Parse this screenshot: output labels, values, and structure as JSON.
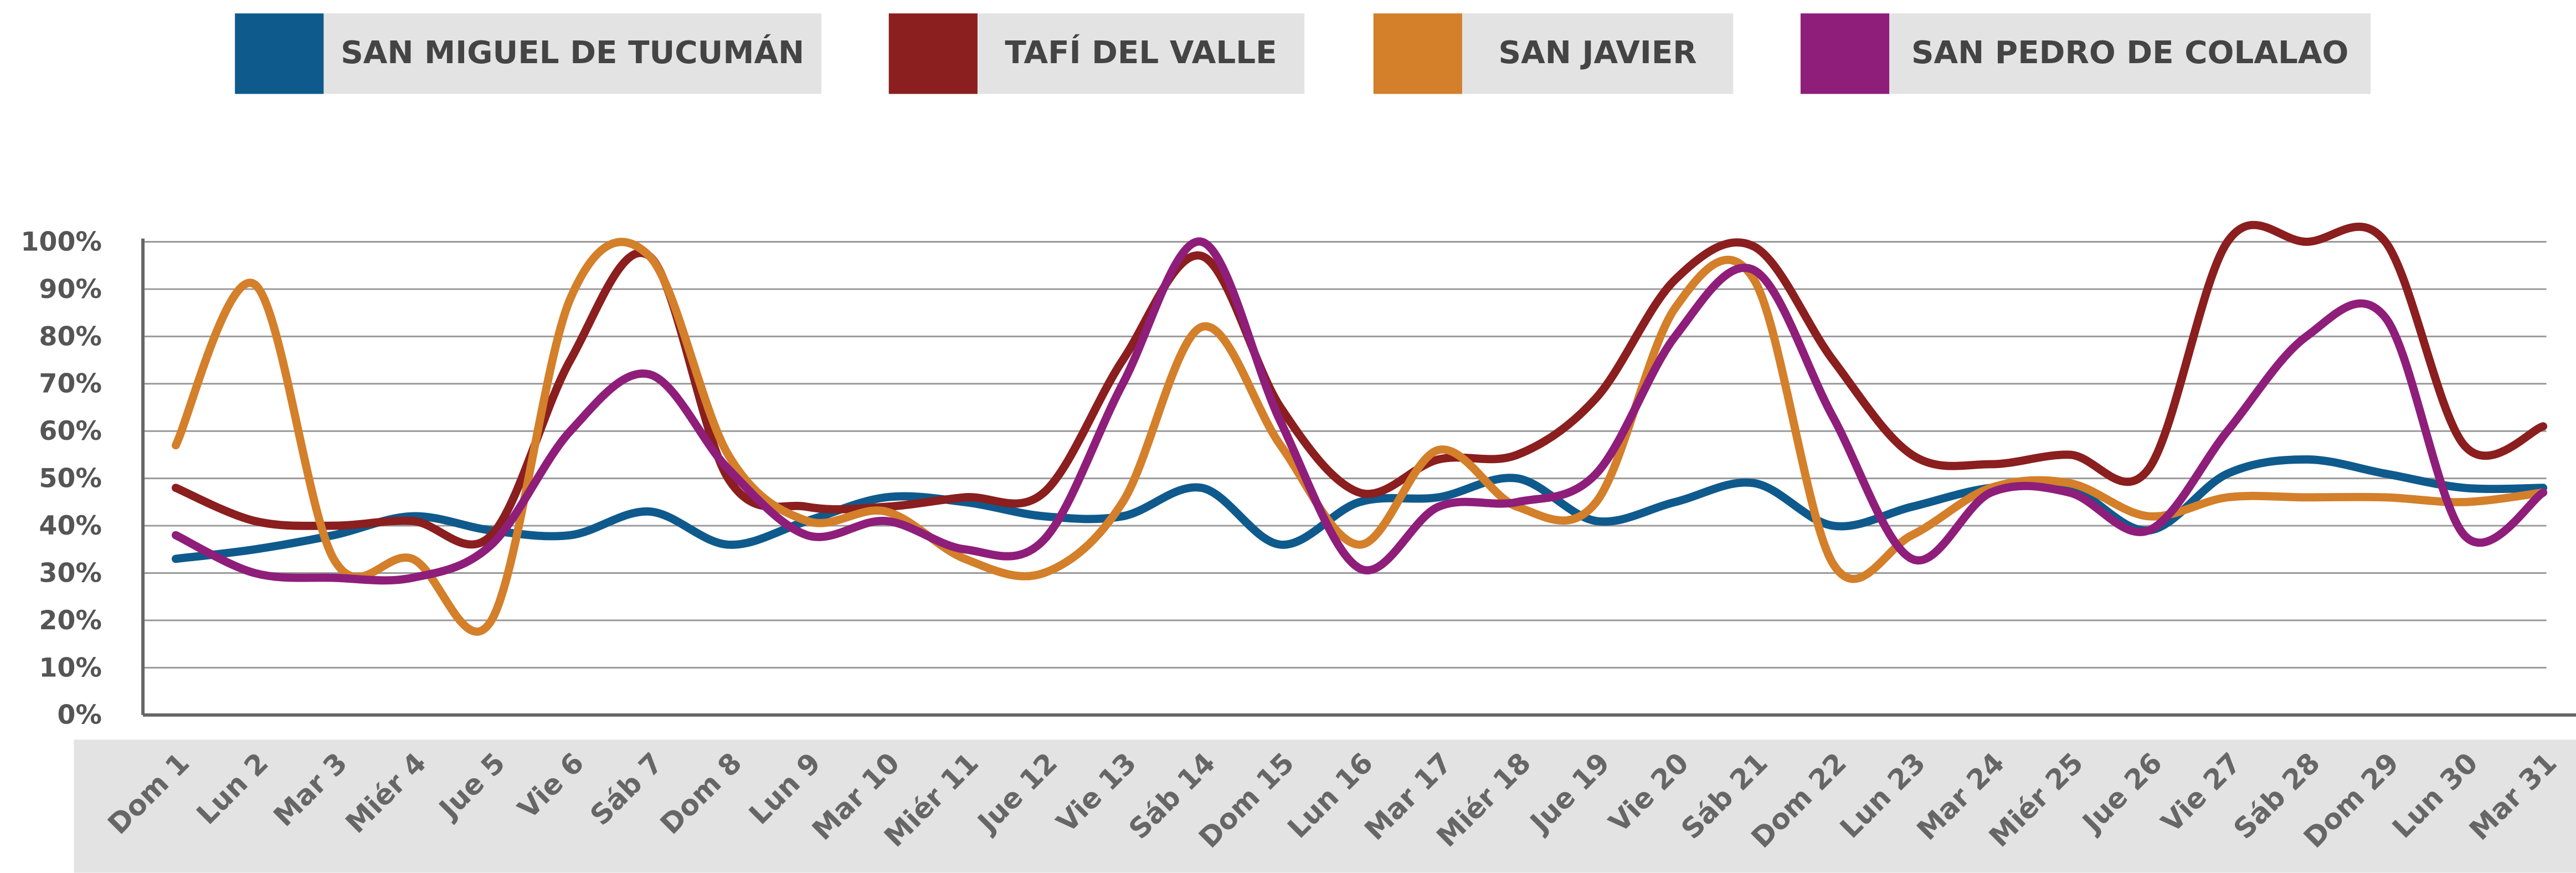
{
  "chart_data": {
    "type": "line",
    "categories": [
      "Dom 1",
      "Lun 2",
      "Mar 3",
      "Miér 4",
      "Jue 5",
      "Vie 6",
      "Sáb 7",
      "Dom 8",
      "Lun 9",
      "Mar 10",
      "Miér 11",
      "Jue 12",
      "Vie 13",
      "Sáb 14",
      "Dom 15",
      "Lun 16",
      "Mar 17",
      "Miér 18",
      "Jue 19",
      "Vie 20",
      "Sáb 21",
      "Dom 22",
      "Lun 23",
      "Mar 24",
      "Miér 25",
      "Jue 26",
      "Vie 27",
      "Sáb 28",
      "Dom 29",
      "Lun 30",
      "Mar 31"
    ],
    "series": [
      {
        "name": "SAN MIGUEL DE TUCUMÁN",
        "color": "#0f5a8c",
        "values": [
          33,
          35,
          38,
          42,
          39,
          38,
          43,
          36,
          41,
          46,
          45,
          42,
          42,
          48,
          36,
          45,
          46,
          50,
          41,
          45,
          49,
          40,
          44,
          48,
          48,
          39,
          51,
          54,
          51,
          48,
          48
        ]
      },
      {
        "name": "TAFÍ DEL VALLE",
        "color": "#8b1e1e",
        "values": [
          48,
          41,
          40,
          41,
          38,
          75,
          97,
          50,
          44,
          44,
          46,
          47,
          75,
          97,
          65,
          47,
          54,
          55,
          67,
          92,
          99,
          75,
          55,
          53,
          55,
          52,
          100,
          100,
          100,
          57,
          61
        ]
      },
      {
        "name": "SAN JAVIER",
        "color": "#d47f2a",
        "values": [
          57,
          91,
          33,
          33,
          20,
          88,
          97,
          55,
          41,
          43,
          33,
          30,
          45,
          82,
          57,
          36,
          56,
          44,
          45,
          86,
          92,
          32,
          38,
          48,
          49,
          42,
          46,
          46,
          46,
          45,
          47
        ]
      },
      {
        "name": "SAN PEDRO DE COLALAO",
        "color": "#8e1e7a",
        "values": [
          38,
          30,
          29,
          29,
          36,
          60,
          72,
          52,
          38,
          41,
          35,
          37,
          70,
          100,
          62,
          31,
          44,
          45,
          51,
          80,
          94,
          63,
          33,
          47,
          47,
          39,
          60,
          80,
          84,
          38,
          47
        ]
      }
    ],
    "ylim": [
      0,
      100
    ],
    "yticks": [
      {
        "value": 0,
        "label": "0%"
      },
      {
        "value": 10,
        "label": "10%"
      },
      {
        "value": 20,
        "label": "20%"
      },
      {
        "value": 30,
        "label": "30%"
      },
      {
        "value": 40,
        "label": "40%"
      },
      {
        "value": 50,
        "label": "50%"
      },
      {
        "value": 60,
        "label": "60%"
      },
      {
        "value": 70,
        "label": "70%"
      },
      {
        "value": 80,
        "label": "80%"
      },
      {
        "value": 90,
        "label": "90%"
      },
      {
        "value": 100,
        "label": "100%"
      }
    ],
    "grid": true,
    "legend": "top"
  }
}
